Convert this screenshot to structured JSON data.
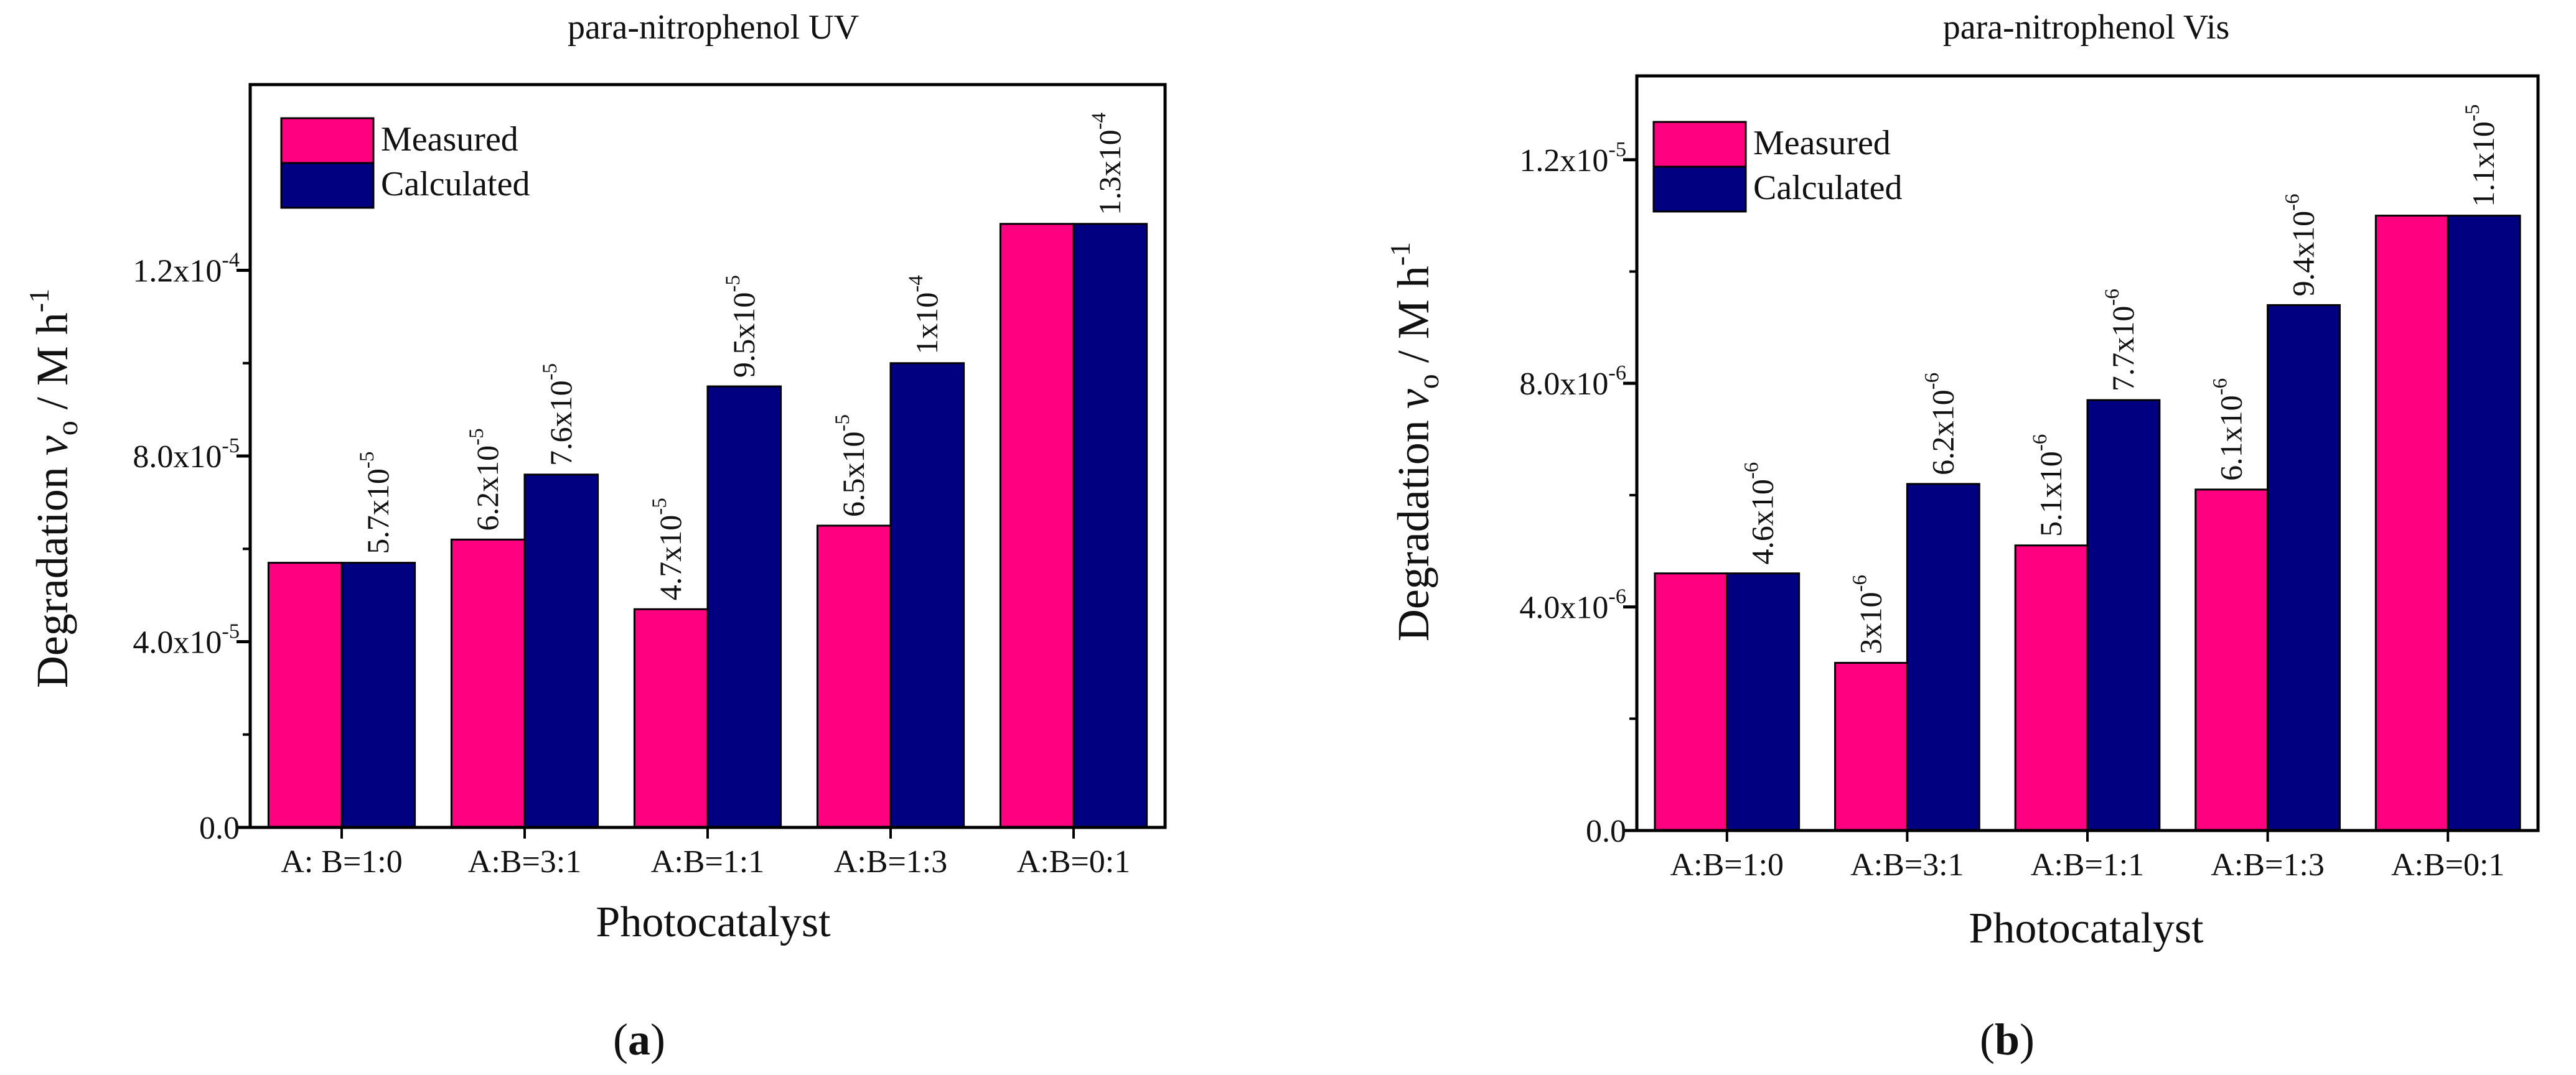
{
  "panels": [
    {
      "title": "para-nitrophenol UV",
      "panel_label": "a",
      "xlabel": "Photocatalyst",
      "ylabel": {
        "main": "Degradation ",
        "v": "v",
        "sub": "o",
        "unit": "  / M h",
        "unit_sup": "-1"
      },
      "legend": [
        "Measured",
        "Calculated"
      ],
      "yticks": [
        {
          "value": 0.0,
          "label": "0.0",
          "exp": ""
        },
        {
          "value": 4e-05,
          "label": "4.0x10",
          "exp": "-5"
        },
        {
          "value": 8e-05,
          "label": "8.0x10",
          "exp": "-5"
        },
        {
          "value": 0.00012,
          "label": "1.2x10",
          "exp": "-4"
        }
      ]
    },
    {
      "title": "para-nitrophenol Vis",
      "panel_label": "b",
      "xlabel": "Photocatalyst",
      "ylabel": {
        "main": "Degradation ",
        "v": "v",
        "sub": "o",
        "unit": "  / M h",
        "unit_sup": "-1"
      },
      "legend": [
        "Measured",
        "Calculated"
      ],
      "yticks": [
        {
          "value": 0.0,
          "label": "0.0",
          "exp": ""
        },
        {
          "value": 4e-06,
          "label": "4.0x10",
          "exp": "-6"
        },
        {
          "value": 8e-06,
          "label": "8.0x10",
          "exp": "-6"
        },
        {
          "value": 1.2e-05,
          "label": "1.2x10",
          "exp": "-5"
        }
      ]
    }
  ],
  "colors": {
    "measured": "#ff0080",
    "calculated": "#000080",
    "axis": "#000000"
  },
  "chart_data": [
    {
      "type": "bar",
      "title": "para-nitrophenol UV",
      "xlabel": "Photocatalyst",
      "ylabel": "Degradation vo / M h-1",
      "categories": [
        "A: B=1:0",
        "A:B=3:1",
        "A:B=1:1",
        "A:B=1:3",
        "A:B=0:1"
      ],
      "series": [
        {
          "name": "Measured",
          "values": [
            5.7e-05,
            6.2e-05,
            4.7e-05,
            6.5e-05,
            0.00013
          ]
        },
        {
          "name": "Calculated",
          "values": [
            5.7e-05,
            7.6e-05,
            9.5e-05,
            0.0001,
            0.00013
          ]
        }
      ],
      "data_labels": [
        {
          "category": 0,
          "series": 1,
          "mant": "5.7x10",
          "exp": "-5"
        },
        {
          "category": 1,
          "series": 0,
          "mant": "6.2x10",
          "exp": "-5"
        },
        {
          "category": 1,
          "series": 1,
          "mant": "7.6x10",
          "exp": "-5"
        },
        {
          "category": 2,
          "series": 0,
          "mant": "4.7x10",
          "exp": "-5"
        },
        {
          "category": 2,
          "series": 1,
          "mant": "9.5x10",
          "exp": "-5"
        },
        {
          "category": 3,
          "series": 0,
          "mant": "6.5x10",
          "exp": "-5"
        },
        {
          "category": 3,
          "series": 1,
          "mant": "1x10",
          "exp": "-4"
        },
        {
          "category": 4,
          "series": 1,
          "mant": "1.3x10",
          "exp": "-4"
        }
      ],
      "ylim": [
        0,
        0.00016
      ],
      "legend_position": "top-left",
      "grid": false
    },
    {
      "type": "bar",
      "title": "para-nitrophenol Vis",
      "xlabel": "Photocatalyst",
      "ylabel": "Degradation vo / M h-1",
      "categories": [
        "A:B=1:0",
        "A:B=3:1",
        "A:B=1:1",
        "A:B=1:3",
        "A:B=0:1"
      ],
      "series": [
        {
          "name": "Measured",
          "values": [
            4.6e-06,
            3e-06,
            5.1e-06,
            6.1e-06,
            1.1e-05
          ]
        },
        {
          "name": "Calculated",
          "values": [
            4.6e-06,
            6.2e-06,
            7.7e-06,
            9.4e-06,
            1.1e-05
          ]
        }
      ],
      "data_labels": [
        {
          "category": 0,
          "series": 1,
          "mant": "4.6x10",
          "exp": "-6"
        },
        {
          "category": 1,
          "series": 0,
          "mant": "3x10",
          "exp": "-6"
        },
        {
          "category": 1,
          "series": 1,
          "mant": "6.2x10",
          "exp": "-6"
        },
        {
          "category": 2,
          "series": 0,
          "mant": "5.1x10",
          "exp": "-6"
        },
        {
          "category": 2,
          "series": 1,
          "mant": "7.7x10",
          "exp": "-6"
        },
        {
          "category": 3,
          "series": 0,
          "mant": "6.1x10",
          "exp": "-6"
        },
        {
          "category": 3,
          "series": 1,
          "mant": "9.4x10",
          "exp": "-6"
        },
        {
          "category": 4,
          "series": 1,
          "mant": "1.1x10",
          "exp": "-5"
        }
      ],
      "ylim": [
        0,
        1.35e-05
      ],
      "legend_position": "top-left",
      "grid": false
    }
  ]
}
